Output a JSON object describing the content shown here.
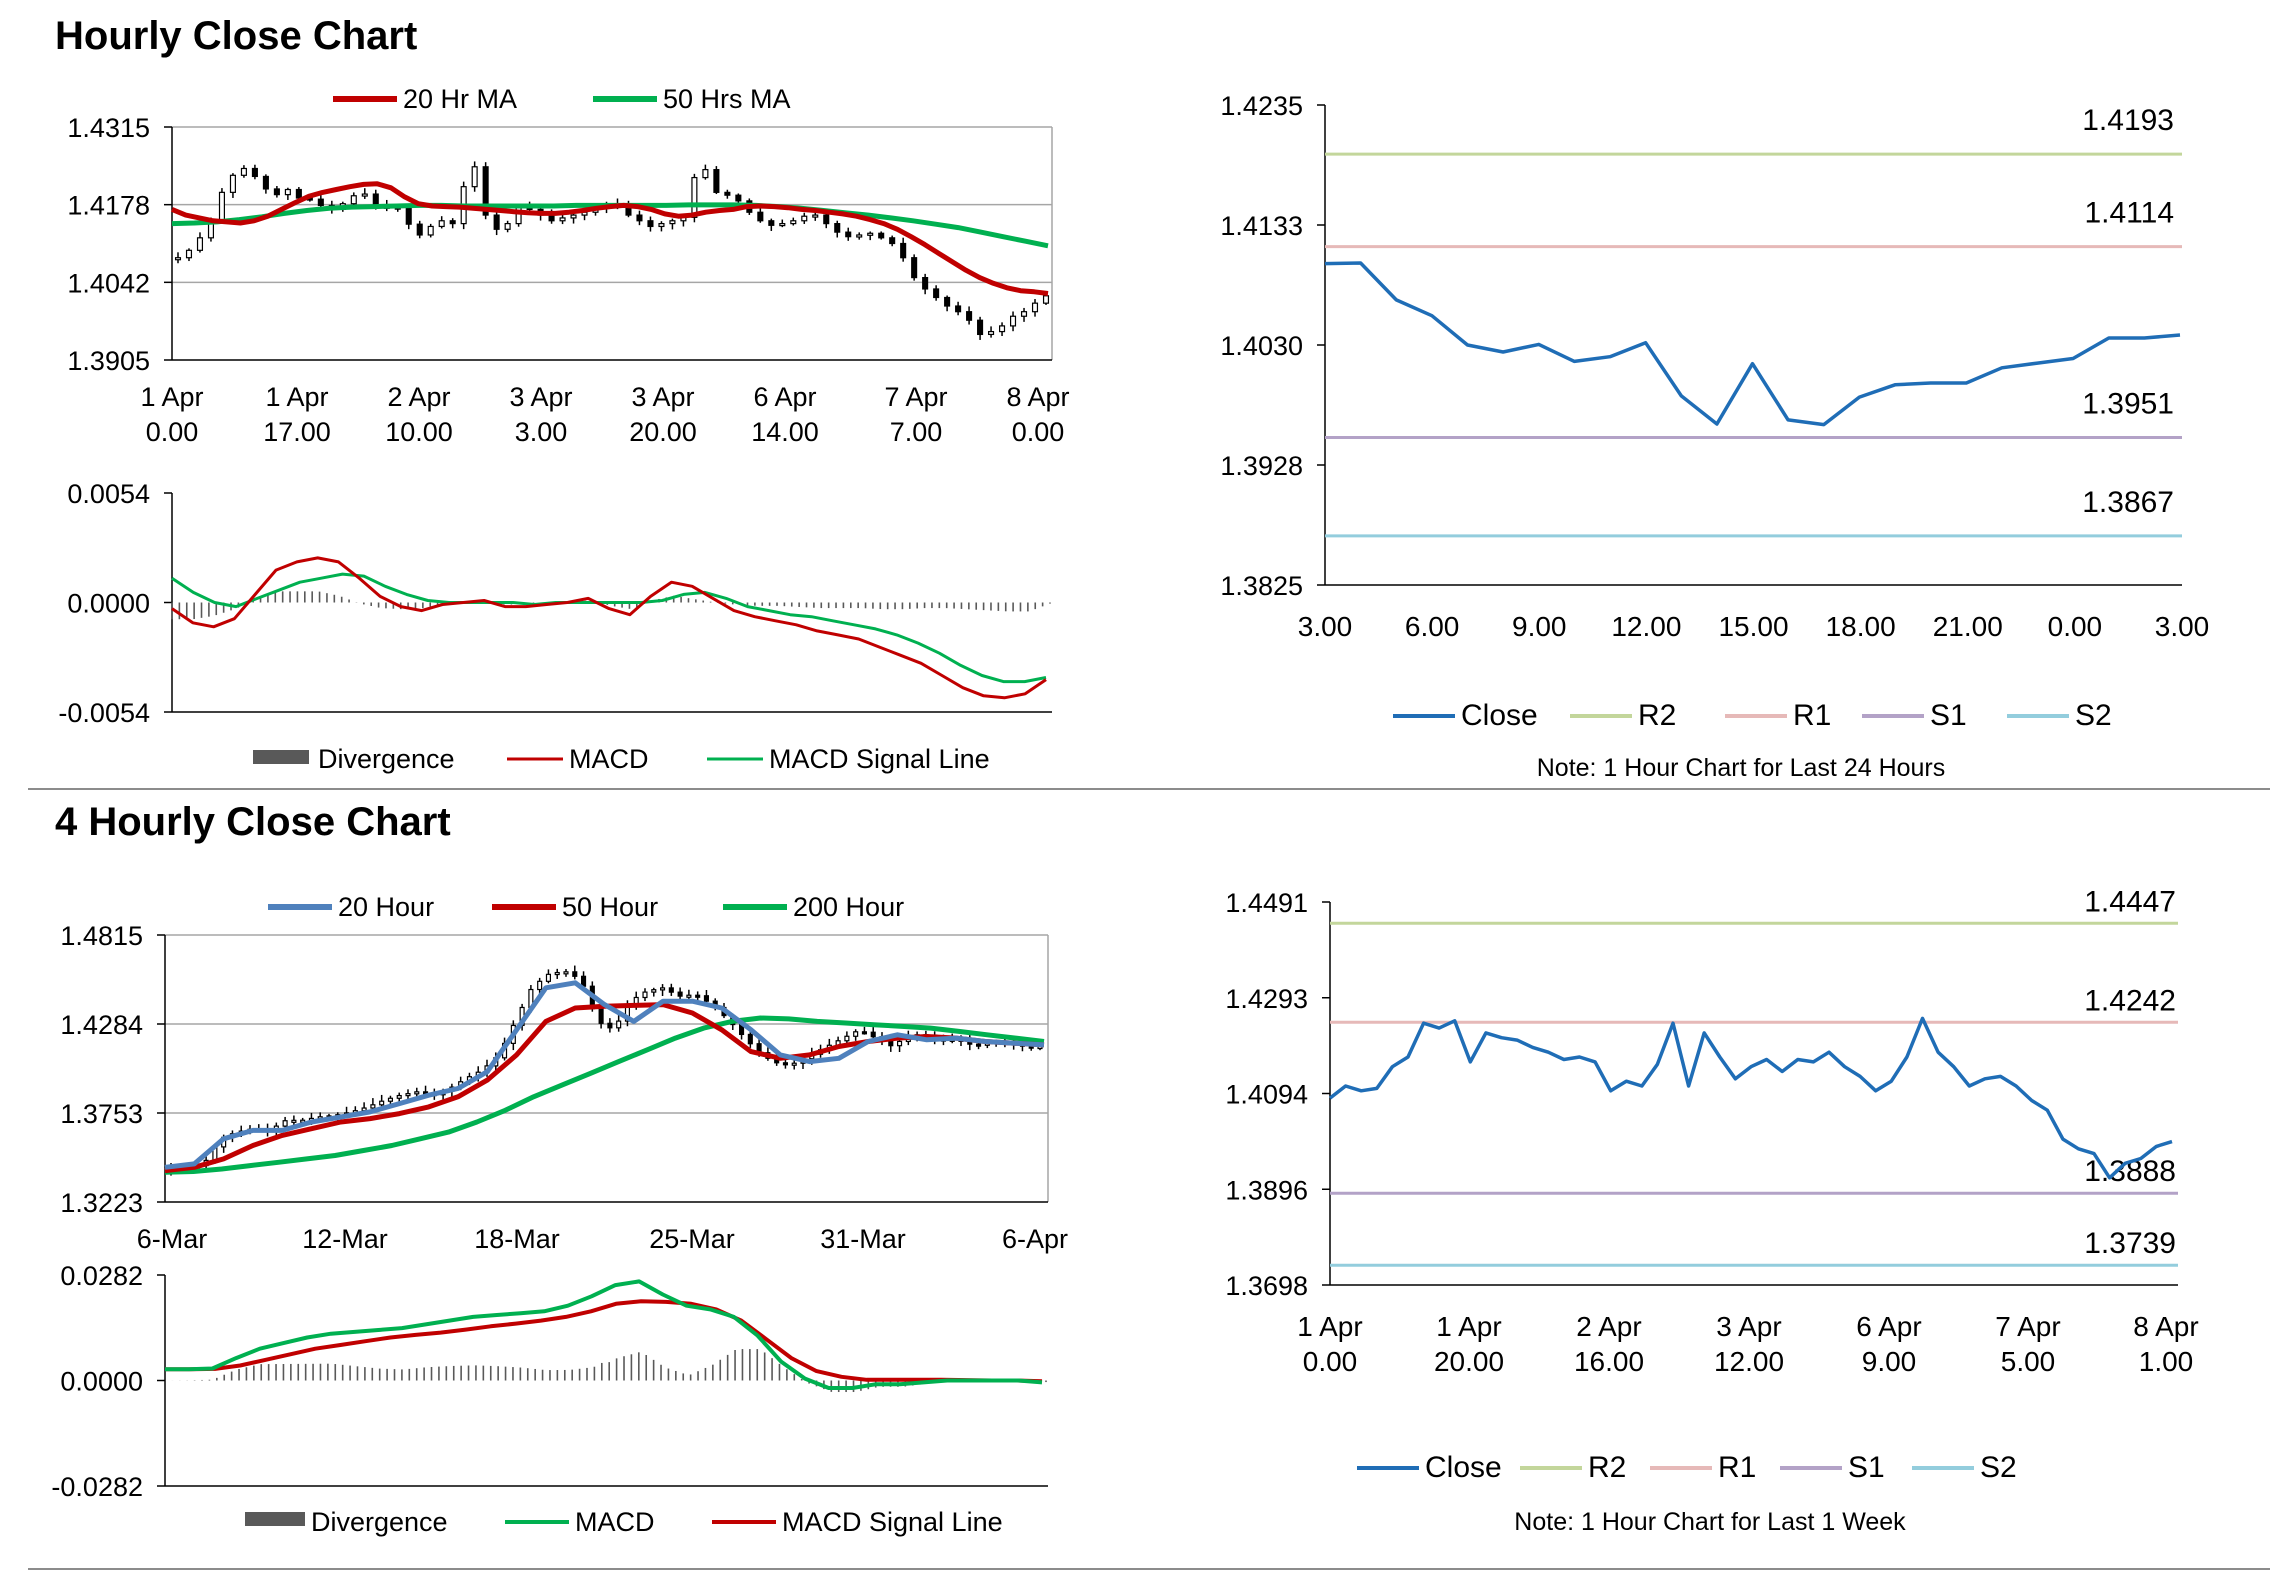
{
  "sections": {
    "hourly": {
      "title": "Hourly Close Chart"
    },
    "four_hourly": {
      "title": "4 Hourly Close Chart"
    }
  },
  "colors": {
    "red": "#C00000",
    "green": "#00B050",
    "blue": "#1F6DB6",
    "steel": "#4F81BD",
    "r2": "#C3D69B",
    "r1": "#E6B9B8",
    "s1": "#B3A2C7",
    "s2": "#93CDDD",
    "gray": "#595959",
    "grid": "#a6a6a6"
  },
  "chart_data": [
    {
      "id": "hourly-candles",
      "type": "candlestick",
      "legend": [
        "20 Hr MA",
        "50 Hrs MA"
      ],
      "yticks": [
        "1.4315",
        "1.4178",
        "1.4042",
        "1.3905"
      ],
      "ylim": [
        1.3905,
        1.4315
      ],
      "xticks": [
        [
          "1 Apr",
          "0.00"
        ],
        [
          "1 Apr",
          "17.00"
        ],
        [
          "2 Apr",
          "10.00"
        ],
        [
          "3 Apr",
          "3.00"
        ],
        [
          "3 Apr",
          "20.00"
        ],
        [
          "6 Apr",
          "14.00"
        ],
        [
          "7 Apr",
          "7.00"
        ],
        [
          "8 Apr",
          "0.00"
        ]
      ],
      "close": [
        1.4085,
        1.4098,
        1.412,
        1.415,
        1.42,
        1.423,
        1.4242,
        1.4228,
        1.4206,
        1.4196,
        1.4205,
        1.419,
        1.4188,
        1.4177,
        1.417,
        1.418,
        1.4194,
        1.4197,
        1.4177,
        1.4172,
        1.4174,
        1.4144,
        1.4125,
        1.414,
        1.415,
        1.4145,
        1.421,
        1.4245,
        1.416,
        1.4135,
        1.4145,
        1.4176,
        1.417,
        1.416,
        1.415,
        1.4155,
        1.416,
        1.4165,
        1.4172,
        1.418,
        1.4175,
        1.416,
        1.415,
        1.414,
        1.4145,
        1.415,
        1.4156,
        1.4226,
        1.424,
        1.42,
        1.4195,
        1.4185,
        1.4165,
        1.415,
        1.4142,
        1.4145,
        1.415,
        1.4158,
        1.416,
        1.4145,
        1.413,
        1.4122,
        1.4125,
        1.4128,
        1.412,
        1.411,
        1.4085,
        1.405,
        1.403,
        1.4015,
        1.4,
        1.399,
        1.3975,
        1.395,
        1.3955,
        1.3965,
        1.3982,
        1.399,
        1.4005,
        1.4018
      ],
      "ma20": [
        1.417,
        1.416,
        1.4155,
        1.415,
        1.4148,
        1.4146,
        1.415,
        1.4158,
        1.417,
        1.4182,
        1.4193,
        1.42,
        1.4205,
        1.421,
        1.4214,
        1.4215,
        1.4208,
        1.4192,
        1.418,
        1.4176,
        1.4175,
        1.4174,
        1.4172,
        1.417,
        1.4168,
        1.4166,
        1.4164,
        1.4163,
        1.4163,
        1.4165,
        1.4168,
        1.4172,
        1.4175,
        1.4177,
        1.4175,
        1.417,
        1.4162,
        1.4158,
        1.416,
        1.4165,
        1.4168,
        1.417,
        1.4175,
        1.4176,
        1.4175,
        1.4173,
        1.417,
        1.4168,
        1.4165,
        1.4162,
        1.4158,
        1.4152,
        1.4145,
        1.4135,
        1.4122,
        1.4108,
        1.4093,
        1.4078,
        1.4063,
        1.405,
        1.404,
        1.4032,
        1.4027,
        1.4025,
        1.4022
      ],
      "ma50": [
        1.4145,
        1.4146,
        1.4148,
        1.4152,
        1.4157,
        1.4163,
        1.4168,
        1.4172,
        1.4174,
        1.4175,
        1.4176,
        1.4177,
        1.4177,
        1.4176,
        1.4176,
        1.4176,
        1.4176,
        1.4176,
        1.4177,
        1.4177,
        1.4177,
        1.4177,
        1.4177,
        1.4178,
        1.4178,
        1.4178,
        1.4177,
        1.4175,
        1.4172,
        1.4168,
        1.4164,
        1.416,
        1.4155,
        1.415,
        1.4144,
        1.4138,
        1.413,
        1.4122,
        1.4114,
        1.4106
      ],
      "macd_panel": {
        "yticks": [
          "0.0054",
          "0.0000",
          "-0.0054"
        ],
        "ylim": [
          -0.0054,
          0.0054
        ],
        "legend": [
          "Divergence",
          "MACD",
          "MACD Signal Line"
        ],
        "macd": [
          -0.0003,
          -0.001,
          -0.0012,
          -0.0008,
          0.0004,
          0.0016,
          0.002,
          0.0022,
          0.002,
          0.0012,
          0.0003,
          -0.0002,
          -0.0004,
          -0.0001,
          0.0,
          0.0001,
          -0.0002,
          -0.0002,
          -0.0001,
          0.0,
          0.0002,
          -0.0003,
          -0.0006,
          0.0003,
          0.001,
          0.0008,
          0.0002,
          -0.0004,
          -0.0007,
          -0.0009,
          -0.0011,
          -0.0014,
          -0.0016,
          -0.0018,
          -0.0022,
          -0.0026,
          -0.003,
          -0.0036,
          -0.0042,
          -0.0046,
          -0.0047,
          -0.0045,
          -0.0038
        ],
        "signal": [
          0.0012,
          0.0005,
          0.0,
          -0.0002,
          0.0002,
          0.0006,
          0.001,
          0.0012,
          0.0014,
          0.0013,
          0.0008,
          0.0004,
          0.0001,
          0.0,
          0.0,
          0.0,
          0.0,
          -0.0001,
          0.0,
          0.0,
          0.0,
          0.0,
          0.0,
          0.0001,
          0.0004,
          0.0005,
          0.0002,
          -0.0002,
          -0.0004,
          -0.0006,
          -0.0007,
          -0.0009,
          -0.0011,
          -0.0013,
          -0.0016,
          -0.002,
          -0.0025,
          -0.0031,
          -0.0036,
          -0.0039,
          -0.0039,
          -0.0037
        ]
      }
    },
    {
      "id": "hourly-24h",
      "type": "line",
      "yticks": [
        "1.4235",
        "1.4133",
        "1.4030",
        "1.3928",
        "1.3825"
      ],
      "ylim": [
        1.3825,
        1.4235
      ],
      "xticks": [
        "3.00",
        "6.00",
        "9.00",
        "12.00",
        "15.00",
        "18.00",
        "21.00",
        "0.00",
        "3.00"
      ],
      "close": [
        1.40995,
        1.41,
        1.40685,
        1.4055,
        1.403,
        1.4024,
        1.40305,
        1.4016,
        1.402,
        1.4032,
        1.39865,
        1.39625,
        1.4014,
        1.3966,
        1.3962,
        1.39855,
        1.3996,
        1.39975,
        1.39975,
        1.40105,
        1.40145,
        1.40185,
        1.4036,
        1.4036,
        1.40385
      ],
      "levels": [
        {
          "name": "R2",
          "value": 1.4193,
          "label": "1.4193"
        },
        {
          "name": "R1",
          "value": 1.4114,
          "label": "1.4114"
        },
        {
          "name": "S1",
          "value": 1.3951,
          "label": "1.3951"
        },
        {
          "name": "S2",
          "value": 1.3867,
          "label": "1.3867"
        }
      ],
      "legend": [
        "Close",
        "R2",
        "R1",
        "S1",
        "S2"
      ],
      "note": "Note: 1 Hour Chart for Last 24 Hours"
    },
    {
      "id": "four-hourly-candles",
      "type": "candlestick",
      "legend": [
        "20 Hour",
        "50 Hour",
        "200 Hour"
      ],
      "yticks": [
        "1.4815",
        "1.4284",
        "1.3753",
        "1.3223"
      ],
      "ylim": [
        1.3223,
        1.4815
      ],
      "xticks": [
        "6-Mar",
        "12-Mar",
        "18-Mar",
        "25-Mar",
        "31-Mar",
        "6-Apr"
      ],
      "close": [
        1.342,
        1.3425,
        1.345,
        1.36,
        1.364,
        1.366,
        1.365,
        1.371,
        1.371,
        1.373,
        1.374,
        1.376,
        1.379,
        1.383,
        1.386,
        1.388,
        1.386,
        1.39,
        1.396,
        1.401,
        1.41,
        1.43,
        1.45,
        1.458,
        1.46,
        1.455,
        1.43,
        1.425,
        1.442,
        1.448,
        1.45,
        1.445,
        1.446,
        1.44,
        1.431,
        1.42,
        1.41,
        1.405,
        1.405,
        1.41,
        1.415,
        1.42,
        1.425,
        1.42,
        1.415,
        1.422,
        1.422,
        1.418,
        1.42,
        1.415,
        1.418,
        1.418,
        1.415,
        1.415
      ]
    },
    {
      "id": "four-hourly-week",
      "type": "line",
      "yticks": [
        "1.4491",
        "1.4293",
        "1.4094",
        "1.3896",
        "1.3698"
      ],
      "ylim": [
        1.3698,
        1.4491
      ],
      "xticks": [
        [
          "1 Apr",
          "0.00"
        ],
        [
          "1 Apr",
          "20.00"
        ],
        [
          "2 Apr",
          "16.00"
        ],
        [
          "3 Apr",
          "12.00"
        ],
        [
          "6 Apr",
          "9.00"
        ],
        [
          "7 Apr",
          "5.00"
        ],
        [
          "8 Apr",
          "1.00"
        ]
      ],
      "close": [
        1.4085,
        1.411,
        1.41,
        1.4105,
        1.415,
        1.417,
        1.424,
        1.423,
        1.4245,
        1.416,
        1.422,
        1.421,
        1.4205,
        1.419,
        1.418,
        1.4165,
        1.417,
        1.416,
        1.41,
        1.412,
        1.411,
        1.4155,
        1.424,
        1.411,
        1.422,
        1.417,
        1.4125,
        1.415,
        1.4165,
        1.414,
        1.4165,
        1.416,
        1.418,
        1.415,
        1.413,
        1.41,
        1.412,
        1.417,
        1.425,
        1.418,
        1.415,
        1.411,
        1.4125,
        1.413,
        1.411,
        1.408,
        1.406,
        1.4,
        1.398,
        1.397,
        1.392,
        1.395,
        1.396,
        1.3985,
        1.3995
      ],
      "levels": [
        {
          "name": "R2",
          "value": 1.4447,
          "label": "1.4447"
        },
        {
          "name": "R1",
          "value": 1.4242,
          "label": "1.4242"
        },
        {
          "name": "S1",
          "value": 1.3888,
          "label": "1.3888"
        },
        {
          "name": "S2",
          "value": 1.3739,
          "label": "1.3739"
        }
      ],
      "legend": [
        "Close",
        "R2",
        "R1",
        "S1",
        "S2"
      ],
      "note": "Note: 1 Hour Chart for  Last 1 Week"
    },
    {
      "id": "four-hourly-macd",
      "type": "line",
      "yticks": [
        "0.0282",
        "0.0000",
        "-0.0282"
      ],
      "ylim": [
        -0.0282,
        0.0282
      ],
      "legend": [
        "Divergence",
        "MACD",
        "MACD Signal Line"
      ],
      "macd": [
        0.003,
        0.003,
        0.0032,
        0.006,
        0.0085,
        0.01,
        0.0115,
        0.0125,
        0.013,
        0.0135,
        0.014,
        0.015,
        0.016,
        0.017,
        0.0175,
        0.018,
        0.0185,
        0.02,
        0.0225,
        0.0255,
        0.0265,
        0.023,
        0.02,
        0.019,
        0.017,
        0.012,
        0.005,
        0.0005,
        -0.002,
        -0.002,
        -0.001,
        -0.001,
        -0.0005,
        0.0,
        0.0,
        0.0,
        0.0,
        -0.0005
      ],
      "signal": [
        0.003,
        0.003,
        0.0031,
        0.004,
        0.0055,
        0.007,
        0.0085,
        0.0095,
        0.0105,
        0.0115,
        0.0122,
        0.0128,
        0.0136,
        0.0145,
        0.0152,
        0.016,
        0.017,
        0.0185,
        0.0205,
        0.0212,
        0.021,
        0.0205,
        0.019,
        0.016,
        0.011,
        0.006,
        0.0025,
        0.001,
        0.0002,
        0.0002,
        0.0002,
        0.0002,
        0.0001,
        0.0,
        0.0,
        -0.0002
      ]
    }
  ]
}
